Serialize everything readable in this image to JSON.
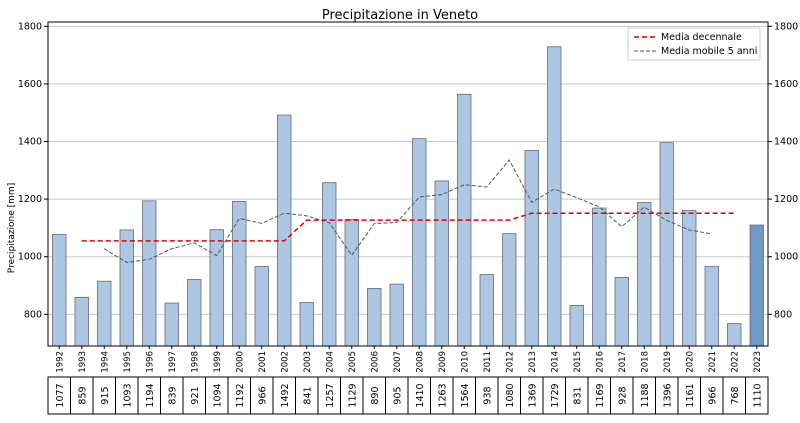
{
  "chart_data": {
    "type": "bar",
    "title": "Precipitazione in Veneto",
    "xlabel": "",
    "ylabel": "Precipitazione [mm]",
    "ylim": [
      690,
      1815
    ],
    "yticks": [
      800,
      1000,
      1200,
      1400,
      1600,
      1800
    ],
    "grid": "horizontal",
    "legend_position": "top-right",
    "categories": [
      "1992",
      "1993",
      "1994",
      "1995",
      "1996",
      "1997",
      "1998",
      "1999",
      "2000",
      "2001",
      "2002",
      "2003",
      "2004",
      "2005",
      "2006",
      "2007",
      "2008",
      "2009",
      "2010",
      "2011",
      "2012",
      "2013",
      "2014",
      "2015",
      "2016",
      "2017",
      "2018",
      "2019",
      "2020",
      "2021",
      "2022",
      "2023"
    ],
    "values": [
      1077,
      859,
      915,
      1093,
      1194,
      839,
      921,
      1094,
      1192,
      966,
      1492,
      841,
      1257,
      1129,
      890,
      905,
      1410,
      1263,
      1564,
      938,
      1080,
      1369,
      1729,
      831,
      1169,
      928,
      1188,
      1396,
      1161,
      966,
      768,
      1110
    ],
    "table_values": [
      "1077",
      "859",
      "915",
      "1093",
      "1194",
      "839",
      "921",
      "1094",
      "1192",
      "966",
      "1492",
      "841",
      "1257",
      "1129",
      "890",
      "905",
      "1410",
      "1263",
      "1564",
      "938",
      "1080",
      "1369",
      "1729",
      "831",
      "1169",
      "928",
      "1188",
      "1396",
      "1161",
      "966",
      "768",
      "1110"
    ],
    "highlighted_category": "2023",
    "series": [
      {
        "name": "Media decennale",
        "type": "step-line",
        "color": "#e00000",
        "style": "dashed",
        "segments": [
          {
            "from": "1993",
            "to": "2002",
            "value": 1055
          },
          {
            "from": "2003",
            "to": "2012",
            "value": 1127
          },
          {
            "from": "2013",
            "to": "2022",
            "value": 1151
          }
        ]
      },
      {
        "name": "Media mobile 5 anni",
        "type": "line",
        "color": "#555555",
        "style": "dashed",
        "x": [
          "1994",
          "1995",
          "1996",
          "1997",
          "1998",
          "1999",
          "2000",
          "2001",
          "2002",
          "2003",
          "2004",
          "2005",
          "2006",
          "2007",
          "2008",
          "2009",
          "2010",
          "2011",
          "2012",
          "2013",
          "2014",
          "2015",
          "2016",
          "2017",
          "2018",
          "2019",
          "2020",
          "2021"
        ],
        "values": [
          1028,
          980,
          991,
          1028,
          1048,
          1004,
          1133,
          1116,
          1151,
          1142,
          1118,
          1005,
          1115,
          1119,
          1207,
          1216,
          1250,
          1242,
          1336,
          1189,
          1235,
          1205,
          1173,
          1104,
          1172,
          1126,
          1093,
          1079
        ]
      }
    ],
    "colors": {
      "bar_fill": "#adc6e2",
      "bar_edge": "#5f6b80",
      "highlight_fill": "#7199c6",
      "grid": "#c8c8c8"
    }
  }
}
